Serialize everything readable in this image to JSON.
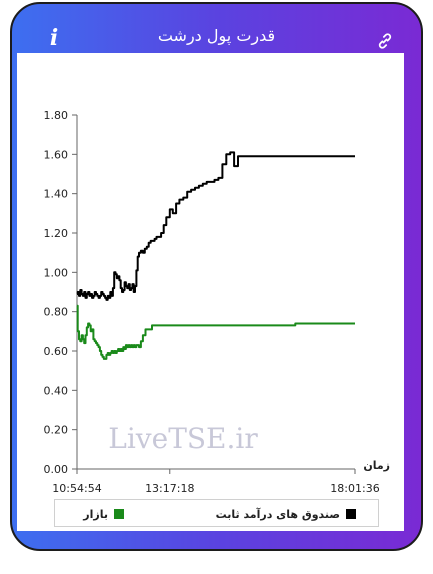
{
  "window": {
    "title": "قدرت پول درشت",
    "icons": {
      "info": "info-icon",
      "link": "link-icon"
    },
    "info_glyph": "i"
  },
  "watermark": "LiveTSE.ir",
  "chart_data": {
    "type": "line",
    "title": "",
    "xlabel": "زمان",
    "ylabel": "",
    "ylim": [
      0,
      1.8
    ],
    "yticks": [
      "0.00",
      "0.20",
      "0.40",
      "0.60",
      "0.80",
      "1.00",
      "1.20",
      "1.40",
      "1.60",
      "1.80"
    ],
    "xtick_labels": [
      "10:54:54",
      "13:17:18",
      "18:01:36"
    ],
    "x_range": [
      "10:54:54",
      "18:01:36"
    ],
    "grid": false,
    "legend_placement": "bottom",
    "series": [
      {
        "name": "صندوق های درآمد ثابت",
        "color": "#000000",
        "x": [
          "10:54:54",
          "10:56:00",
          "10:58:00",
          "11:00:00",
          "11:02:00",
          "11:04:00",
          "11:06:00",
          "11:08:00",
          "11:10:00",
          "11:12:00",
          "11:14:00",
          "11:16:00",
          "11:18:00",
          "11:20:00",
          "11:22:00",
          "11:24:00",
          "11:26:00",
          "11:28:00",
          "11:30:00",
          "11:32:00",
          "11:34:00",
          "11:36:00",
          "11:38:00",
          "11:40:00",
          "11:42:00",
          "11:44:00",
          "11:46:00",
          "11:48:00",
          "11:50:00",
          "11:52:00",
          "11:54:00",
          "11:56:00",
          "11:58:00",
          "12:00:00",
          "12:02:00",
          "12:04:00",
          "12:06:00",
          "12:08:00",
          "12:10:00",
          "12:12:00",
          "12:14:00",
          "12:16:00",
          "12:18:00",
          "12:20:00",
          "12:22:00",
          "12:24:00",
          "12:26:00",
          "12:28:00",
          "12:30:00",
          "12:33:00",
          "12:36:00",
          "12:39:00",
          "12:42:00",
          "12:45:00",
          "12:48:00",
          "12:51:00",
          "12:54:00",
          "12:57:00",
          "13:00:00",
          "13:04:00",
          "13:08:00",
          "13:12:00",
          "13:17:18",
          "13:22:00",
          "13:27:00",
          "13:32:00",
          "13:38:00",
          "13:44:00",
          "13:50:00",
          "13:56:00",
          "14:02:00",
          "14:08:00",
          "14:14:00",
          "14:20:00",
          "14:26:00",
          "14:32:00",
          "14:38:00",
          "14:44:00",
          "14:50:00",
          "14:56:00",
          "15:02:00",
          "15:08:00",
          "15:14:00",
          "15:20:00",
          "15:26:00",
          "15:32:00",
          "15:40:00",
          "15:50:00",
          "16:00:00",
          "16:30:00",
          "17:00:00",
          "17:30:00",
          "18:01:36"
        ],
        "y": [
          0.89,
          0.9,
          0.88,
          0.91,
          0.89,
          0.88,
          0.9,
          0.87,
          0.89,
          0.9,
          0.88,
          0.89,
          0.87,
          0.88,
          0.9,
          0.89,
          0.88,
          0.87,
          0.88,
          0.9,
          0.89,
          0.88,
          0.87,
          0.86,
          0.88,
          0.87,
          0.9,
          0.88,
          0.92,
          1.0,
          0.99,
          0.97,
          0.98,
          0.96,
          0.92,
          0.9,
          0.91,
          0.95,
          0.93,
          0.92,
          0.94,
          0.91,
          0.92,
          0.94,
          0.9,
          0.93,
          1.01,
          1.08,
          1.1,
          1.11,
          1.1,
          1.12,
          1.13,
          1.15,
          1.16,
          1.16,
          1.17,
          1.18,
          1.18,
          1.2,
          1.24,
          1.28,
          1.32,
          1.3,
          1.35,
          1.37,
          1.38,
          1.41,
          1.42,
          1.43,
          1.44,
          1.45,
          1.46,
          1.46,
          1.47,
          1.48,
          1.55,
          1.6,
          1.61,
          1.54,
          1.59,
          1.59,
          1.59,
          1.59,
          1.59,
          1.59,
          1.59,
          1.59,
          1.59,
          1.59,
          1.59,
          1.59,
          1.59
        ]
      },
      {
        "name": "بازار",
        "color": "#1a8a1a",
        "x": [
          "10:54:54",
          "10:56:00",
          "10:58:00",
          "11:00:00",
          "11:02:00",
          "11:04:00",
          "11:06:00",
          "11:08:00",
          "11:10:00",
          "11:12:00",
          "11:14:00",
          "11:16:00",
          "11:18:00",
          "11:20:00",
          "11:22:00",
          "11:24:00",
          "11:26:00",
          "11:28:00",
          "11:30:00",
          "11:32:00",
          "11:34:00",
          "11:36:00",
          "11:38:00",
          "11:40:00",
          "11:42:00",
          "11:44:00",
          "11:46:00",
          "11:48:00",
          "11:50:00",
          "11:52:00",
          "11:54:00",
          "11:56:00",
          "11:58:00",
          "12:00:00",
          "12:02:00",
          "12:04:00",
          "12:06:00",
          "12:08:00",
          "12:10:00",
          "12:12:00",
          "12:14:00",
          "12:16:00",
          "12:18:00",
          "12:20:00",
          "12:22:00",
          "12:24:00",
          "12:26:00",
          "12:28:00",
          "12:30:00",
          "12:33:00",
          "12:36:00",
          "12:40:00",
          "12:50:00",
          "13:00:00",
          "13:17:18",
          "13:40:00",
          "14:00:00",
          "14:30:00",
          "15:00:00",
          "15:30:00",
          "16:00:00",
          "16:30:00",
          "17:00:00",
          "17:30:00",
          "18:01:36"
        ],
        "y": [
          0.83,
          0.7,
          0.66,
          0.65,
          0.68,
          0.66,
          0.64,
          0.68,
          0.72,
          0.74,
          0.73,
          0.7,
          0.71,
          0.66,
          0.65,
          0.64,
          0.63,
          0.62,
          0.6,
          0.58,
          0.57,
          0.56,
          0.56,
          0.58,
          0.59,
          0.58,
          0.59,
          0.6,
          0.59,
          0.6,
          0.59,
          0.6,
          0.61,
          0.6,
          0.61,
          0.6,
          0.62,
          0.61,
          0.63,
          0.62,
          0.63,
          0.62,
          0.63,
          0.62,
          0.63,
          0.62,
          0.63,
          0.63,
          0.62,
          0.65,
          0.68,
          0.71,
          0.73,
          0.73,
          0.73,
          0.73,
          0.73,
          0.73,
          0.73,
          0.73,
          0.73,
          0.74,
          0.74,
          0.74,
          0.74
        ]
      }
    ]
  }
}
